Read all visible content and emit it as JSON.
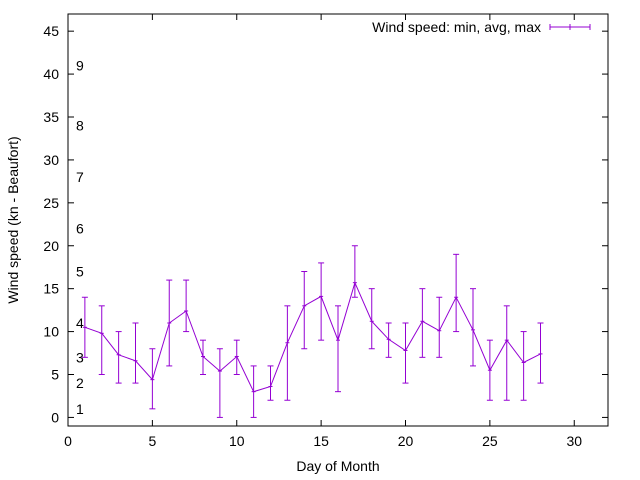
{
  "chart_data": {
    "type": "line",
    "xlabel": "Day of Month",
    "ylabel": "Wind speed (kn - Beaufort)",
    "xlim": [
      0,
      32
    ],
    "ylim": [
      -1,
      47
    ],
    "x_ticks": [
      0,
      5,
      10,
      15,
      20,
      25,
      30
    ],
    "y_ticks": [
      0,
      5,
      10,
      15,
      20,
      25,
      30,
      35,
      40,
      45
    ],
    "beaufort_labels": [
      {
        "label": "1",
        "y": 1
      },
      {
        "label": "2",
        "y": 4
      },
      {
        "label": "3",
        "y": 7
      },
      {
        "label": "4",
        "y": 11
      },
      {
        "label": "5",
        "y": 17
      },
      {
        "label": "6",
        "y": 22
      },
      {
        "label": "7",
        "y": 28
      },
      {
        "label": "8",
        "y": 34
      },
      {
        "label": "9",
        "y": 41
      }
    ],
    "legend": {
      "label": "Wind speed: min, avg, max",
      "position": "top-right"
    },
    "series": [
      {
        "name": "Wind speed: min, avg, max",
        "color": "#9400d3",
        "x": [
          1,
          2,
          3,
          4,
          5,
          6,
          7,
          8,
          9,
          10,
          11,
          12,
          13,
          14,
          15,
          16,
          17,
          18,
          19,
          20,
          21,
          22,
          23,
          24,
          25,
          26,
          27,
          28
        ],
        "avg": [
          10.5,
          9.8,
          7.3,
          6.6,
          4.4,
          11.0,
          12.4,
          7.1,
          5.4,
          7.1,
          3.0,
          3.6,
          8.7,
          13.0,
          14.1,
          9.0,
          15.7,
          11.2,
          9.1,
          7.8,
          11.2,
          10.1,
          14.0,
          10.2,
          5.5,
          9.0,
          6.4,
          7.4
        ],
        "min": [
          7,
          5,
          4,
          4,
          1,
          6,
          10,
          5,
          0,
          5,
          0,
          2,
          2,
          8,
          9,
          3,
          14,
          8,
          7,
          4,
          7,
          7,
          10,
          6,
          2,
          2,
          2,
          4
        ],
        "max": [
          14,
          13,
          10,
          11,
          8,
          16,
          16,
          9,
          8,
          9,
          6,
          6,
          13,
          17,
          18,
          13,
          20,
          15,
          11,
          11,
          15,
          14,
          19,
          15,
          9,
          13,
          10,
          11
        ]
      }
    ]
  }
}
